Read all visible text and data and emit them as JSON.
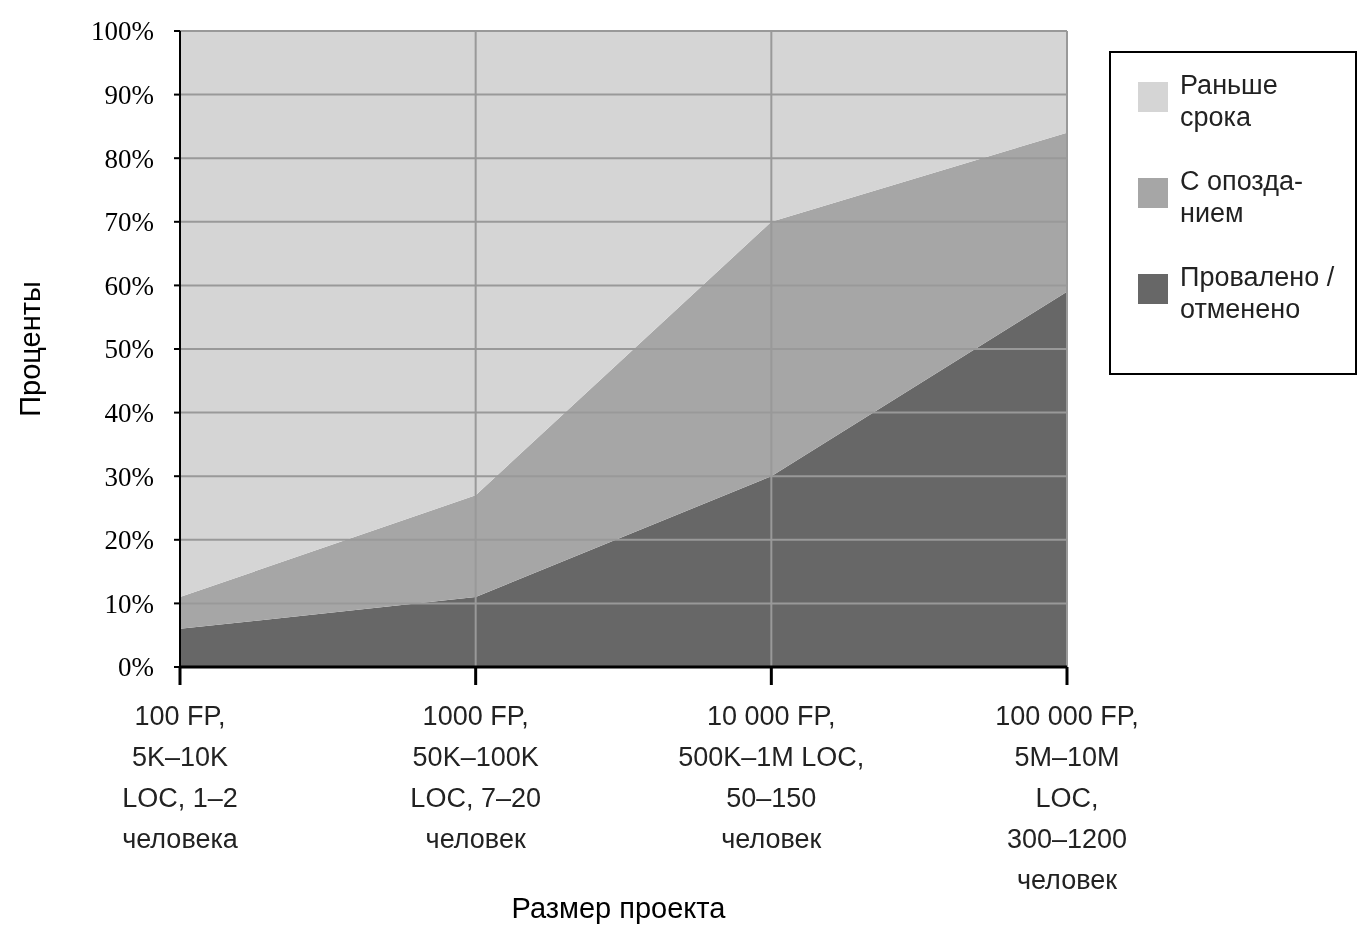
{
  "chart_data": {
    "type": "area",
    "stacked": true,
    "xlabel": "Размер проекта",
    "ylabel": "Проценты",
    "categories": [
      "100 FP,\n5K–10K\nLOC, 1–2\nчеловека",
      "1000 FP,\n50K–100K\nLOC, 7–20\nчеловек",
      "10 000 FP,\n500K–1M LOC,\n50–150\nчеловек",
      "100 000 FP,\n5M–10M\nLOC,\n300–1200\nчеловек"
    ],
    "series": [
      {
        "name": "Провалено /\nотменено",
        "color": "#676767",
        "values": [
          6,
          11,
          30,
          59
        ]
      },
      {
        "name": "С опозда-\nнием",
        "color": "#a6a6a6",
        "values": [
          5,
          16,
          40,
          25
        ]
      },
      {
        "name": "Раньше\nсрока",
        "color": "#d5d5d5",
        "values": [
          89,
          73,
          30,
          16
        ]
      }
    ],
    "ylim": [
      0,
      100
    ],
    "yticks": [
      {
        "value": 0,
        "label": "0%"
      },
      {
        "value": 10,
        "label": "10%"
      },
      {
        "value": 20,
        "label": "20%"
      },
      {
        "value": 30,
        "label": "30%"
      },
      {
        "value": 40,
        "label": "40%"
      },
      {
        "value": 50,
        "label": "50%"
      },
      {
        "value": 60,
        "label": "60%"
      },
      {
        "value": 70,
        "label": "70%"
      },
      {
        "value": 80,
        "label": "80%"
      },
      {
        "value": 90,
        "label": "90%"
      },
      {
        "value": 100,
        "label": "100%"
      }
    ],
    "grid": true,
    "legend": "right"
  }
}
